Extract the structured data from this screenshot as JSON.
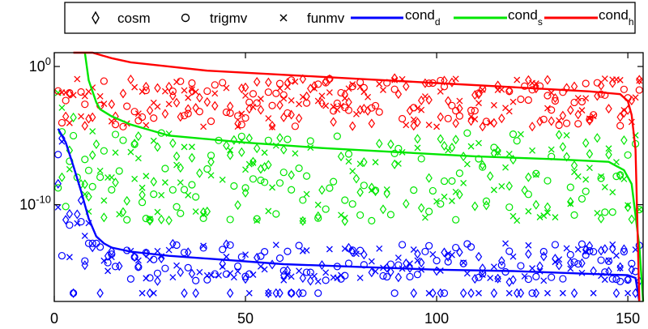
{
  "chart_data": {
    "type": "scatter",
    "title": "",
    "xlabel": "",
    "ylabel": "",
    "xlim": [
      0,
      154
    ],
    "ylim_log10": [
      -17,
      1
    ],
    "y_scale": "log",
    "x_ticks": [
      0,
      50,
      100,
      150
    ],
    "x_tick_labels": [
      "0",
      "50",
      "100",
      "150"
    ],
    "y_ticks_log10": [
      0,
      -10
    ],
    "y_tick_labels": [
      {
        "base": "10",
        "exp": "0"
      },
      {
        "base": "10",
        "exp": "-10"
      }
    ],
    "grid": false,
    "legend_position": "top, outside",
    "legend": [
      {
        "label": "cosm",
        "marker": "diamond"
      },
      {
        "label": "trigmv",
        "marker": "circle"
      },
      {
        "label": "funmv",
        "marker": "cross"
      },
      {
        "label": "cond",
        "sub": "d",
        "color": "#0000ff"
      },
      {
        "label": "cond",
        "sub": "s",
        "color": "#00e600"
      },
      {
        "label": "cond",
        "sub": "h",
        "color": "#ff0000"
      }
    ],
    "colors": {
      "d": "#0000ff",
      "s": "#00e600",
      "h": "#ff0000"
    },
    "lines": [
      {
        "key": "cond_d",
        "color": "#0000ff",
        "points": [
          [
            1,
            -4.5
          ],
          [
            3,
            -5.5
          ],
          [
            5,
            -7.2
          ],
          [
            7,
            -9
          ],
          [
            9,
            -11
          ],
          [
            11,
            -12.3
          ],
          [
            13,
            -12.8
          ],
          [
            15,
            -13.1
          ],
          [
            20,
            -13.4
          ],
          [
            30,
            -13.7
          ],
          [
            40,
            -13.9
          ],
          [
            60,
            -14.3
          ],
          [
            80,
            -14.5
          ],
          [
            100,
            -14.7
          ],
          [
            120,
            -14.8
          ],
          [
            140,
            -15
          ],
          [
            150,
            -15.1
          ],
          [
            152,
            -15.3
          ],
          [
            153,
            -17
          ]
        ]
      },
      {
        "key": "cond_s",
        "color": "#00e600",
        "points": [
          [
            8,
            1.3
          ],
          [
            9,
            -1
          ],
          [
            10,
            -1.8
          ],
          [
            11,
            -2.6
          ],
          [
            12,
            -3.1
          ],
          [
            15,
            -3.6
          ],
          [
            20,
            -4.2
          ],
          [
            25,
            -4.6
          ],
          [
            30,
            -5
          ],
          [
            50,
            -5.5
          ],
          [
            70,
            -5.9
          ],
          [
            90,
            -6.2
          ],
          [
            110,
            -6.5
          ],
          [
            130,
            -6.7
          ],
          [
            145,
            -6.9
          ],
          [
            149,
            -7.5
          ],
          [
            151,
            -8.5
          ],
          [
            153,
            -13
          ],
          [
            154,
            -17
          ]
        ]
      },
      {
        "key": "cond_h",
        "color": "#ff0000",
        "points": [
          [
            5,
            1.5
          ],
          [
            7,
            1.5
          ],
          [
            8,
            1.1
          ],
          [
            10,
            1
          ],
          [
            15,
            0.6
          ],
          [
            20,
            0.3
          ],
          [
            30,
            0
          ],
          [
            40,
            -0.3
          ],
          [
            60,
            -0.6
          ],
          [
            80,
            -0.9
          ],
          [
            100,
            -1.2
          ],
          [
            120,
            -1.5
          ],
          [
            140,
            -1.8
          ],
          [
            148,
            -2
          ],
          [
            150,
            -2.5
          ],
          [
            151,
            -3.5
          ],
          [
            152,
            -6
          ],
          [
            153,
            -17
          ]
        ]
      }
    ]
  }
}
